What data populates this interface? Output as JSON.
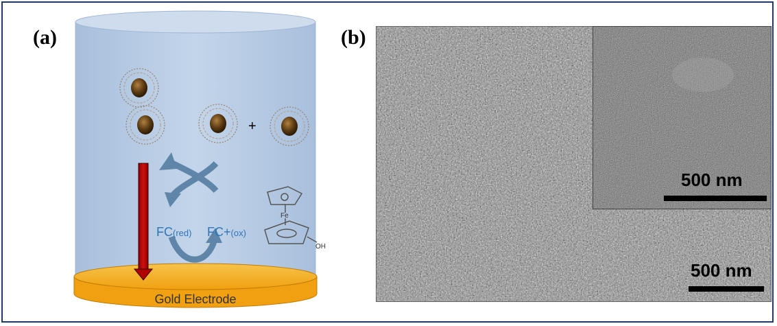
{
  "panel_a": {
    "label": "(a)",
    "electrode_label": "Gold Electrode",
    "plus_sign": "+",
    "fc_red_main": "FC",
    "fc_red_sub": "(red)",
    "fc_ox_main": "FC+",
    "fc_ox_sub": "(ox)",
    "fe_label": "Fe",
    "oh_label": "OH",
    "colors": {
      "solution": "#b9cde4",
      "electrode": "#f4a81e",
      "arrow": "#c00000",
      "nanoparticle": "#5a3a12",
      "cycle_arrow": "#5f85a8",
      "text_blue": "#2e75b6"
    }
  },
  "panel_b": {
    "label": "(b)",
    "main_scale_label": "500 nm",
    "inset_scale_label": "500 nm"
  }
}
